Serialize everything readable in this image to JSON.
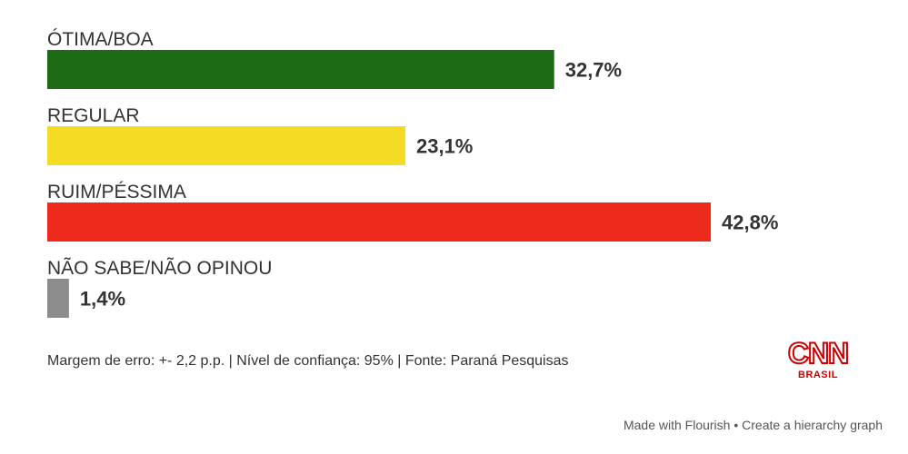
{
  "chart_data": {
    "type": "bar",
    "orientation": "horizontal",
    "categories": [
      "ÓTIMA/BOA",
      "REGULAR",
      "RUIM/PÉSSIMA",
      "NÃO SABE/NÃO OPINOU"
    ],
    "values": [
      32.7,
      23.1,
      42.8,
      1.4
    ],
    "value_labels": [
      "32,7%",
      "23,1%",
      "42,8%",
      "1,4%"
    ],
    "colors": [
      "#1d6b14",
      "#f5dc24",
      "#ee2a1d",
      "#8c8c8c"
    ],
    "title": "",
    "xlabel": "",
    "ylabel": "",
    "grid": false,
    "legend": "none"
  },
  "footer": {
    "note": "Margem de erro: +- 2,2 p.p. | Nível de confiança: 95% | Fonte: Paraná Pesquisas"
  },
  "logo": {
    "name": "CNN",
    "subtitle": "BRASIL",
    "color": "#cc0000"
  },
  "credit": {
    "text": "Made with Flourish • Create a hierarchy graph"
  }
}
